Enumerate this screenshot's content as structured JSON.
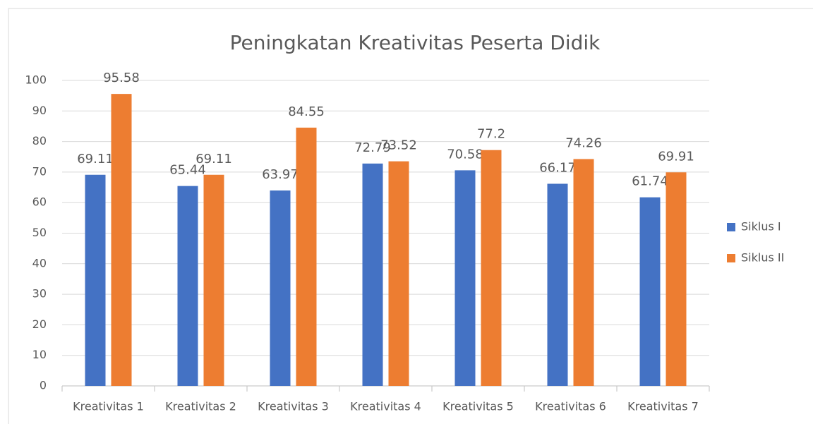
{
  "chart_data": {
    "type": "bar",
    "title": "Peningkatan Kreativitas Peserta Didik",
    "categories": [
      "Kreativitas 1",
      "Kreativitas 2",
      "Kreativitas 3",
      "Kreativitas 4",
      "Kreativitas 5",
      "Kreativitas 6",
      "Kreativitas 7"
    ],
    "series": [
      {
        "name": "Siklus I",
        "color": "#4472c4",
        "values": [
          69.11,
          65.44,
          63.97,
          72.79,
          70.58,
          66.17,
          61.74
        ]
      },
      {
        "name": "Siklus II",
        "color": "#ed7d31",
        "values": [
          95.58,
          69.11,
          84.55,
          73.52,
          77.2,
          74.26,
          69.91
        ]
      }
    ],
    "ylim": [
      0,
      100
    ],
    "yticks": [
      0,
      10,
      20,
      30,
      40,
      50,
      60,
      70,
      80,
      90,
      100
    ],
    "grid": true,
    "legend": "right"
  }
}
